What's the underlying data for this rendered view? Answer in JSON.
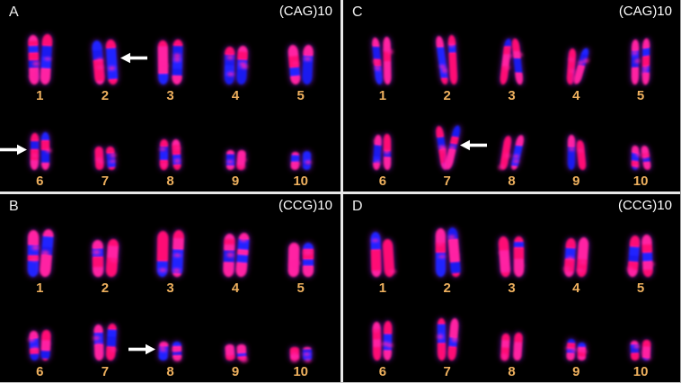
{
  "figure": {
    "colors": {
      "background": "#000000",
      "divider": "#e8e8e8",
      "number": "#eeb05e",
      "panel_label": "#efefef",
      "probe_label": "#ffffff",
      "arrow": "#ffffff",
      "signal_pink": "#ff2f96",
      "signal_red_pink": "#ff1a6e",
      "counterstain_blue": "#2426e0",
      "counterstain_blue_dark": "#1d1dc8"
    },
    "panels": [
      {
        "id": "A",
        "label": "A",
        "probe": "(CAG)10",
        "position": "top-left",
        "appearance": {
          "pink_bias": 0.4,
          "curved": false,
          "widths": [
            11,
            9
          ],
          "heights": [
            [
              55,
              52,
              46,
              42,
              46
            ],
            [
              42,
              28,
              32,
              22,
              22
            ]
          ]
        },
        "rows": [
          {
            "numbers": [
              "1",
              "2",
              "3",
              "4",
              "5"
            ],
            "arrow": {
              "index": 1,
              "side": "right",
              "direction": "left",
              "top": "28%"
            }
          },
          {
            "numbers": [
              "6",
              "7",
              "8",
              "9",
              "10"
            ],
            "arrow": {
              "index": 0,
              "side": "left",
              "direction": "right",
              "top": "30%"
            }
          }
        ]
      },
      {
        "id": "C",
        "label": "C",
        "probe": "(CAG)10",
        "position": "top-right",
        "appearance": {
          "pink_bias": 0.58,
          "curved": true,
          "widths": [
            8,
            8
          ],
          "heights": [
            [
              58,
              52,
              52,
              44,
              48
            ],
            [
              36,
              48,
              40,
              36,
              26
            ]
          ]
        },
        "rows": [
          {
            "numbers": [
              "1",
              "2",
              "3",
              "4",
              "5"
            ]
          },
          {
            "numbers": [
              "6",
              "7",
              "8",
              "9",
              "10"
            ],
            "arrow": {
              "index": 1,
              "side": "right",
              "direction": "left",
              "top": "32%"
            }
          }
        ]
      },
      {
        "id": "B",
        "label": "B",
        "probe": "(CCG)10",
        "position": "bottom-left",
        "appearance": {
          "pink_bias": 0.62,
          "curved": false,
          "widths": [
            12,
            10
          ],
          "heights": [
            [
              52,
              44,
              48,
              48,
              40
            ],
            [
              34,
              44,
              20,
              18,
              16
            ]
          ]
        },
        "rows": [
          {
            "numbers": [
              "1",
              "2",
              "3",
              "4",
              "5"
            ]
          },
          {
            "numbers": [
              "6",
              "7",
              "8",
              "9",
              "10"
            ],
            "arrow": {
              "index": 2,
              "side": "left",
              "direction": "right",
              "top": "10%"
            }
          }
        ]
      },
      {
        "id": "D",
        "label": "D",
        "probe": "(CCG)10",
        "position": "bottom-right",
        "appearance": {
          "pink_bias": 0.6,
          "curved": false,
          "widths": [
            11,
            9
          ],
          "heights": [
            [
              46,
              52,
              46,
              48,
              44
            ],
            [
              40,
              46,
              32,
              22,
              22
            ]
          ]
        },
        "rows": [
          {
            "numbers": [
              "1",
              "2",
              "3",
              "4",
              "5"
            ]
          },
          {
            "numbers": [
              "6",
              "7",
              "8",
              "9",
              "10"
            ]
          }
        ]
      }
    ]
  }
}
